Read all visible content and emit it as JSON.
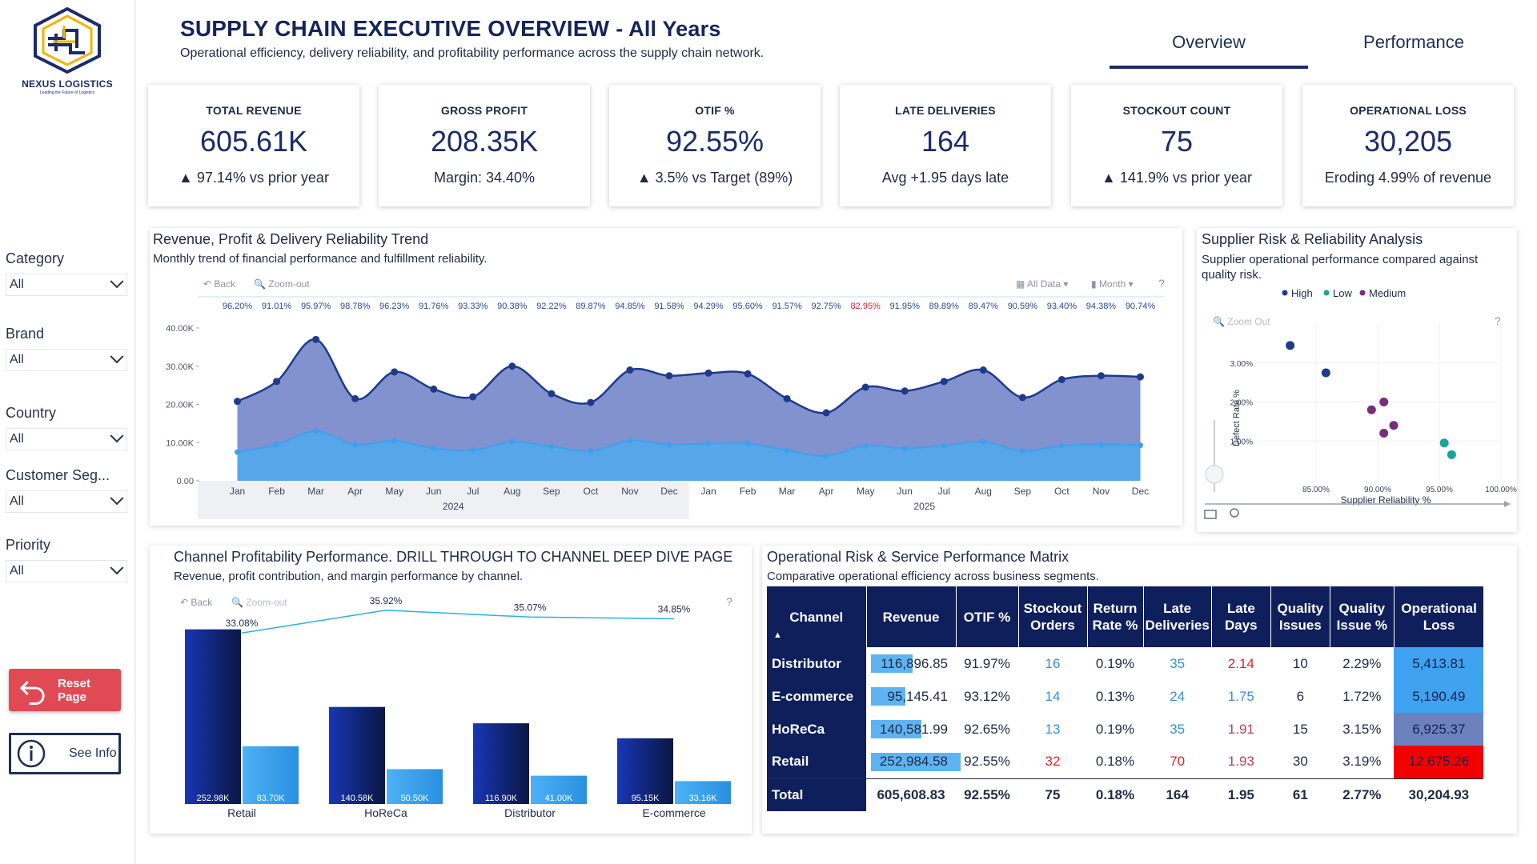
{
  "brand": {
    "name": "NEXUS LOGISTICS",
    "tagline": "Leading the Future of Logistics"
  },
  "header": {
    "title": "SUPPLY CHAIN EXECUTIVE OVERVIEW",
    "title_suffix": "- All Years",
    "subtitle": "Operational efficiency, delivery reliability, and profitability performance across the supply chain network."
  },
  "tabs": {
    "overview": "Overview",
    "performance": "Performance"
  },
  "slicers": [
    {
      "label": "Category",
      "value": "All"
    },
    {
      "label": "Brand",
      "value": "All"
    },
    {
      "label": "Country",
      "value": "All"
    },
    {
      "label": "Customer Seg...",
      "value": "All"
    },
    {
      "label": "Priority",
      "value": "All"
    }
  ],
  "buttons": {
    "reset": "Reset Page",
    "info": "See Info"
  },
  "kpis": [
    {
      "label": "TOTAL  REVENUE",
      "value": "605.61K",
      "sub": "▲ 97.14% vs prior year"
    },
    {
      "label": "GROSS PROFIT",
      "value": "208.35K",
      "sub": "Margin: 34.40%"
    },
    {
      "label": "OTIF %",
      "value": "92.55%",
      "sub": "▲ 3.5% vs Target (89%)"
    },
    {
      "label": "LATE DELIVERIES",
      "value": "164",
      "sub": "Avg +1.95 days late"
    },
    {
      "label": "STOCKOUT COUNT",
      "value": "75",
      "sub": "▲ 141.9% vs prior year"
    },
    {
      "label": "OPERATIONAL LOSS",
      "value": "30,205",
      "sub": "Eroding 4.99% of revenue"
    }
  ],
  "trend": {
    "title": "Revenue, Profit & Delivery Reliability Trend",
    "subtitle": "Monthly trend of financial performance and fulfillment reliability.",
    "toolbar": {
      "back": "Back",
      "zoom": "Zoom-out",
      "data": "All Data",
      "period": "Month"
    }
  },
  "supplier": {
    "title": "Supplier Risk & Reliability Analysis",
    "subtitle": "Supplier operational performance compared against quality risk.",
    "zoom": "Zoom Out"
  },
  "channel": {
    "title": "Channel Profitability Performance. DRILL THROUGH TO CHANNEL DEEP DIVE PAGE",
    "subtitle": "Revenue, profit contribution, and margin performance by channel.",
    "back": "Back",
    "zoom": "Zoom-out"
  },
  "matrix": {
    "title": "Operational Risk & Service Performance Matrix",
    "subtitle": "Comparative operational efficiency across business segments.",
    "headers": [
      "Channel",
      "Revenue",
      "OTIF %",
      "Stockout Orders",
      "Return Rate %",
      "Late Deliveries",
      "Late Days",
      "Quality Issues",
      "Quality Issue %",
      "Operational Loss"
    ],
    "rows": [
      {
        "channel": "Distributor",
        "revenue": "116,896.85",
        "rev_num": 116896.85,
        "otif": "91.97%",
        "stockout": "16",
        "return": "0.19%",
        "late": "35",
        "days": "2.14",
        "qi": "10",
        "qip": "2.29%",
        "loss": "5,413.81",
        "loss_color": "#3fa2ef",
        "stock_color": "blue",
        "late_color": "blue",
        "days_color": "red"
      },
      {
        "channel": "E-commerce",
        "revenue": "95,145.41",
        "rev_num": 95145.41,
        "otif": "93.12%",
        "stockout": "14",
        "return": "0.13%",
        "late": "24",
        "days": "1.75",
        "qi": "6",
        "qip": "1.72%",
        "loss": "5,190.49",
        "loss_color": "#3fa2ef",
        "stock_color": "blue",
        "late_color": "blue",
        "days_color": "blue"
      },
      {
        "channel": "HoReCa",
        "revenue": "140,581.99",
        "rev_num": 140581.99,
        "otif": "92.65%",
        "stockout": "13",
        "return": "0.19%",
        "late": "35",
        "days": "1.91",
        "qi": "15",
        "qip": "3.15%",
        "loss": "6,925.37",
        "loss_color": "#6b82bf",
        "stock_color": "blue",
        "late_color": "blue",
        "days_color": "maroon"
      },
      {
        "channel": "Retail",
        "revenue": "252,984.58",
        "rev_num": 252984.58,
        "otif": "92.55%",
        "stockout": "32",
        "return": "0.18%",
        "late": "70",
        "days": "1.93",
        "qi": "30",
        "qip": "3.19%",
        "loss": "12,675.26",
        "loss_color": "#f20000",
        "stock_color": "red",
        "late_color": "red",
        "days_color": "maroon"
      }
    ],
    "total": {
      "channel": "Total",
      "revenue": "605,608.83",
      "otif": "92.55%",
      "stockout": "75",
      "return": "0.18%",
      "late": "164",
      "days": "1.95",
      "qi": "61",
      "qip": "2.77%",
      "loss": "30,204.93"
    }
  },
  "chart_data": [
    {
      "type": "area",
      "title": "Revenue, Profit & Delivery Reliability Trend",
      "x": [
        "Jan",
        "Feb",
        "Mar",
        "Apr",
        "May",
        "Jun",
        "Jul",
        "Aug",
        "Sep",
        "Oct",
        "Nov",
        "Dec",
        "Jan",
        "Feb",
        "Mar",
        "Apr",
        "May",
        "Jun",
        "Jul",
        "Aug",
        "Sep",
        "Oct",
        "Nov",
        "Dec"
      ],
      "x_groups": [
        {
          "label": "2024",
          "span": 12
        },
        {
          "label": "2025",
          "span": 12
        }
      ],
      "yticks": [
        "0.00",
        "10.00K",
        "20.00K",
        "30.00K",
        "40.00K"
      ],
      "ylim": [
        0,
        40000
      ],
      "series": [
        {
          "values": [
            20800,
            26000,
            37000,
            21500,
            28500,
            24000,
            22000,
            30000,
            22800,
            20500,
            29000,
            27500,
            28200,
            28000,
            21500,
            17800,
            24500,
            23500,
            26000,
            29000,
            21800,
            26500,
            27500,
            27200
          ],
          "color": "#1e3a8a"
        },
        {
          "values": [
            7500,
            9500,
            13000,
            9500,
            10500,
            8500,
            8000,
            10200,
            9000,
            7800,
            10500,
            9500,
            9800,
            9800,
            8000,
            6500,
            9200,
            8500,
            9200,
            10200,
            7800,
            9200,
            9500,
            9300
          ],
          "color": "#3ea0ef"
        }
      ],
      "data_labels": [
        "96.20%",
        "91.01%",
        "95.97%",
        "98.78%",
        "96.23%",
        "91.76%",
        "93.33%",
        "90.38%",
        "92.22%",
        "89.87%",
        "94.85%",
        "91.58%",
        "94.29%",
        "95.60%",
        "91.57%",
        "92.75%",
        "82.95%",
        "91.95%",
        "89.89%",
        "89.47%",
        "90.59%",
        "93.40%",
        "94.38%",
        "90.74%"
      ],
      "highlight_label_index": 16
    },
    {
      "type": "scatter",
      "title": "Supplier Risk & Reliability Analysis",
      "xlabel": "Supplier Reliability %",
      "ylabel": "Defect Rate %",
      "xticks": [
        "85.00%",
        "90.00%",
        "95.00%",
        "100.00%"
      ],
      "yticks": [
        "1.00%",
        "2.00%",
        "3.00%"
      ],
      "xlim": [
        80,
        100
      ],
      "ylim": [
        0,
        4
      ],
      "legend": "top",
      "series": [
        {
          "name": "High",
          "color": "#1e3a8a",
          "points": [
            [
              82.9,
              3.45
            ],
            [
              85.8,
              2.75
            ]
          ]
        },
        {
          "name": "Low",
          "color": "#1aa39a",
          "points": [
            [
              95.4,
              0.95
            ],
            [
              96.0,
              0.65
            ]
          ]
        },
        {
          "name": "Medium",
          "color": "#7a2c7a",
          "points": [
            [
              89.5,
              1.8
            ],
            [
              90.5,
              2.0
            ],
            [
              90.5,
              1.2
            ],
            [
              91.3,
              1.4
            ]
          ]
        }
      ]
    },
    {
      "type": "bar",
      "title": "Channel Profitability Performance. DRILL THROUGH TO CHANNEL DEEP DIVE PAGE",
      "categories": [
        "Retail",
        "HoReCa",
        "Distributor",
        "E-commerce"
      ],
      "ylim": [
        0,
        270000
      ],
      "series": [
        {
          "values": [
            252980,
            140580,
            116900,
            95150
          ],
          "labels": [
            "252.98K",
            "140.58K",
            "116.90K",
            "95.15K"
          ],
          "color": "#0f2a8a"
        },
        {
          "values": [
            83700,
            50500,
            41000,
            33160
          ],
          "labels": [
            "83.70K",
            "50.50K",
            "41.00K",
            "33.16K"
          ],
          "color": "#3ea0ef"
        }
      ],
      "line": {
        "values": [
          33.08,
          35.92,
          35.07,
          34.85
        ],
        "labels": [
          "33.08%",
          "35.92%",
          "35.07%",
          "34.85%"
        ],
        "color": "#2bb0e6",
        "ylim": [
          0,
          40
        ]
      }
    }
  ]
}
